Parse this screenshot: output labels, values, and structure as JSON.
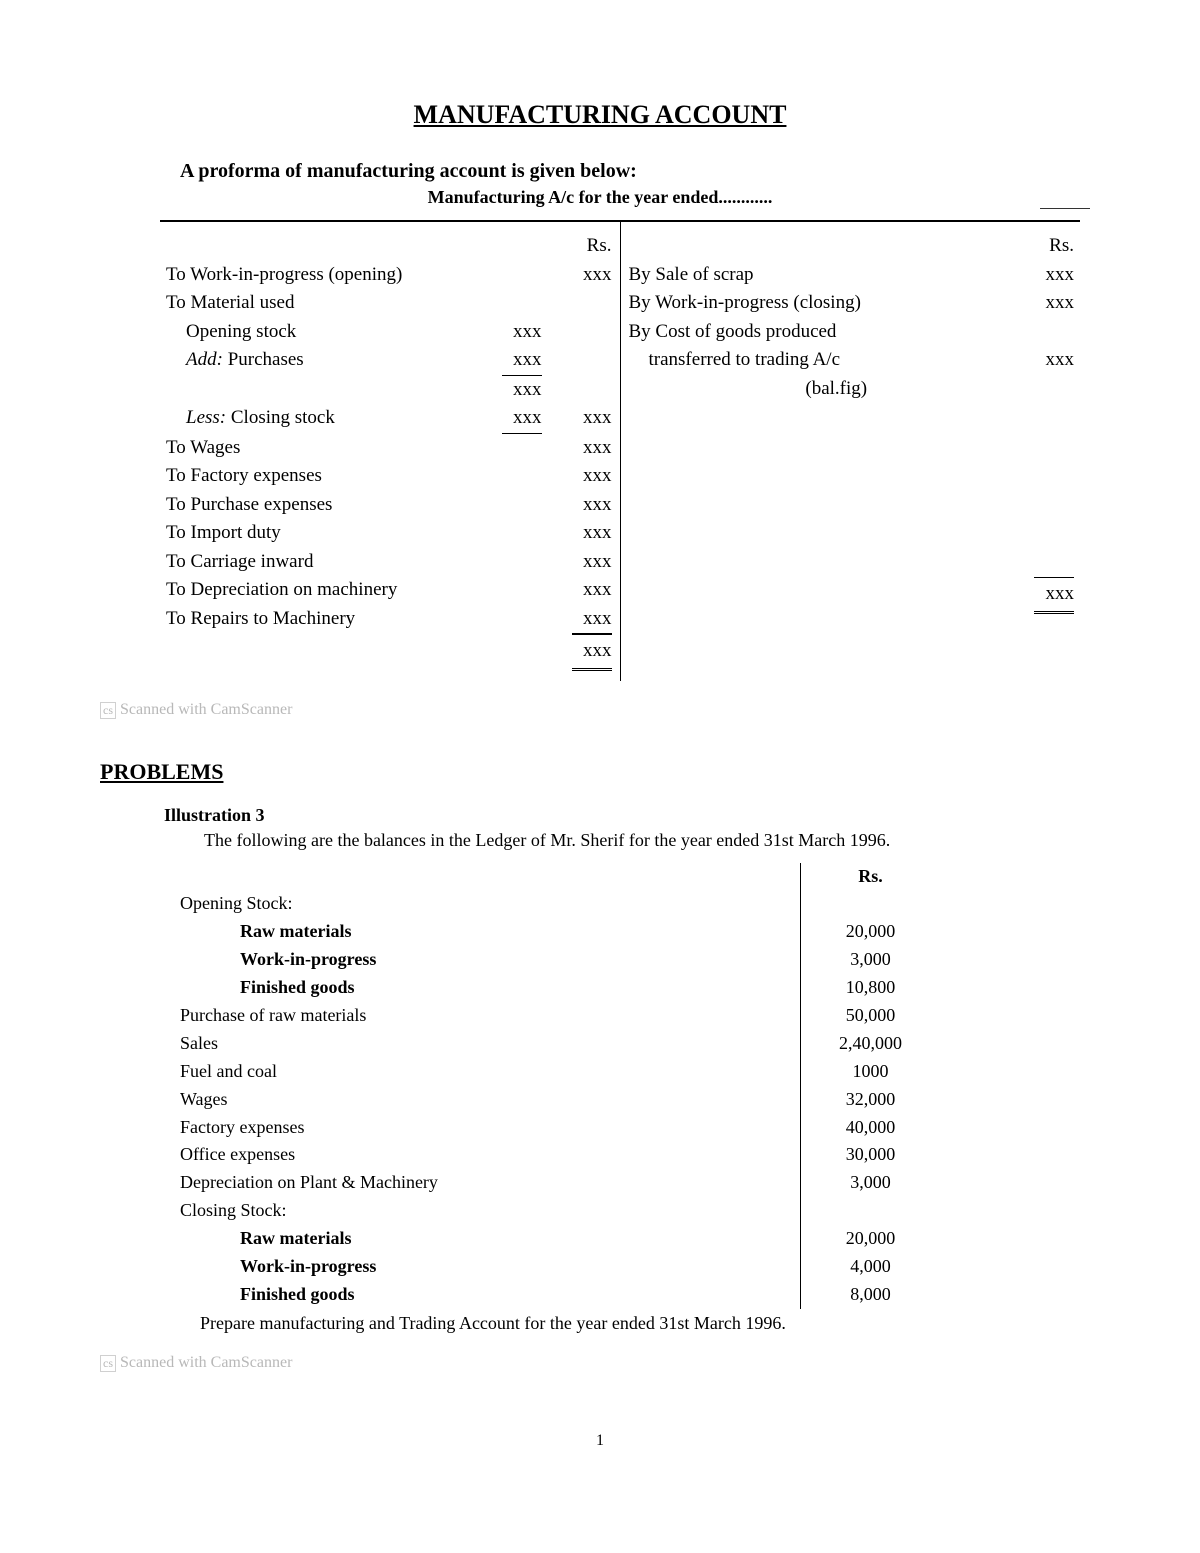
{
  "main_title": "MANUFACTURING ACCOUNT",
  "intro_text": "A proforma of manufacturing account is given below:",
  "table_title": "Manufacturing A/c for the year ended............",
  "proforma": {
    "currency_label": "Rs.",
    "debit_rows": [
      {
        "label": "To Work-in-progress (opening)",
        "mid": "",
        "right": "xxx"
      },
      {
        "label": "To Material used",
        "mid": "",
        "right": ""
      },
      {
        "label": "Opening stock",
        "sub": true,
        "mid": "xxx",
        "right": ""
      },
      {
        "label": "Add: Purchases",
        "sub": true,
        "italic_prefix": "Add:",
        "mid": "xxx",
        "right": "",
        "mid_underline": true
      },
      {
        "label": "",
        "mid": "xxx",
        "right": ""
      },
      {
        "label": "Less: Closing stock",
        "sub": true,
        "italic_prefix": "Less:",
        "mid": "xxx",
        "right": "xxx",
        "mid_underline": true
      },
      {
        "label": "To Wages",
        "mid": "",
        "right": "xxx"
      },
      {
        "label": "To Factory expenses",
        "mid": "",
        "right": "xxx"
      },
      {
        "label": "To Purchase expenses",
        "mid": "",
        "right": "xxx"
      },
      {
        "label": "To Import duty",
        "mid": "",
        "right": "xxx"
      },
      {
        "label": "To Carriage inward",
        "mid": "",
        "right": "xxx"
      },
      {
        "label": "To Depreciation on machinery",
        "mid": "",
        "right": "xxx"
      },
      {
        "label": "To Repairs to Machinery",
        "mid": "",
        "right": "xxx",
        "right_underline": true
      }
    ],
    "debit_total": "xxx",
    "credit_rows": [
      {
        "label": "By Sale of scrap",
        "right": "xxx"
      },
      {
        "label": "By Work-in-progress (closing)",
        "right": "xxx"
      },
      {
        "label": "By Cost of goods produced",
        "right": ""
      },
      {
        "label": "transferred to trading A/c",
        "sub": true,
        "right": "xxx"
      },
      {
        "label": "(bal.fig)",
        "sub": true,
        "center": true,
        "right": ""
      }
    ],
    "credit_total": "xxx"
  },
  "scanned_prefix": "cs",
  "scanned_text": "Scanned with CamScanner",
  "problems_heading": "PROBLEMS",
  "illustration": {
    "title": "Illustration 3",
    "text": "The following are the balances in the Ledger of Mr. Sherif for the year ended 31st March 1996.",
    "currency_label": "Rs.",
    "rows": [
      {
        "label": "Opening Stock:",
        "val": ""
      },
      {
        "label": "Raw materials",
        "sub": true,
        "val": "20,000"
      },
      {
        "label": "Work-in-progress",
        "sub": true,
        "val": "3,000"
      },
      {
        "label": "Finished goods",
        "sub": true,
        "val": "10,800"
      },
      {
        "label": "Purchase of raw materials",
        "val": "50,000"
      },
      {
        "label": "Sales",
        "val": "2,40,000"
      },
      {
        "label": "Fuel and coal",
        "val": "1000"
      },
      {
        "label": "Wages",
        "val": "32,000"
      },
      {
        "label": "Factory expenses",
        "val": "40,000"
      },
      {
        "label": "Office expenses",
        "val": "30,000"
      },
      {
        "label": "Depreciation on Plant & Machinery",
        "val": "3,000"
      },
      {
        "label": "Closing Stock:",
        "val": ""
      },
      {
        "label": "Raw materials",
        "sub": true,
        "val": "20,000"
      },
      {
        "label": "Work-in-progress",
        "sub": true,
        "val": "4,000"
      },
      {
        "label": "Finished goods",
        "sub": true,
        "val": "8,000"
      }
    ],
    "prepare_text": "Prepare manufacturing and Trading Account for the year ended 31st March 1996."
  },
  "page_number": "1"
}
